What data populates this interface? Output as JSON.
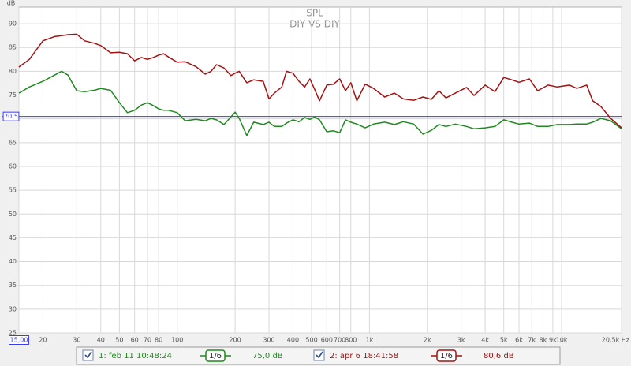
{
  "chart_data": {
    "type": "line",
    "title": "SPL",
    "subtitle": "DIY VS DIY",
    "y_label": "dB",
    "xscale": "log",
    "grid": true,
    "xlim": [
      15,
      20500
    ],
    "ylim": [
      25,
      93.5
    ],
    "xticks": [
      {
        "value": 15,
        "label": "15,00"
      },
      20,
      30,
      40,
      50,
      60,
      70,
      80,
      100,
      200,
      300,
      400,
      500,
      600,
      700,
      800,
      {
        "value": 1000,
        "label": "1k"
      },
      {
        "value": 2000,
        "label": "2k"
      },
      {
        "value": 3000,
        "label": "3k"
      },
      {
        "value": 4000,
        "label": "4k"
      },
      {
        "value": 5000,
        "label": "5k"
      },
      {
        "value": 6000,
        "label": "6k"
      },
      {
        "value": 7000,
        "label": "7k"
      },
      {
        "value": 8000,
        "label": "8k"
      },
      {
        "value": 9000,
        "label": "9k"
      },
      {
        "value": 10000,
        "label": "10k"
      },
      {
        "value": 20500,
        "label": "20,5k Hz"
      }
    ],
    "yticks": [
      25,
      30,
      35,
      40,
      45,
      50,
      55,
      60,
      65,
      70,
      75,
      80,
      85,
      90
    ],
    "reference_line": {
      "value": 70.5,
      "label": "70,5",
      "color": "#3a3aff"
    },
    "x": [
      15,
      17,
      20,
      23,
      25,
      27,
      30,
      33,
      37,
      40,
      45,
      50,
      55,
      60,
      65,
      70,
      75,
      80,
      85,
      90,
      100,
      110,
      125,
      140,
      150,
      160,
      175,
      190,
      200,
      210,
      230,
      250,
      280,
      300,
      320,
      350,
      370,
      400,
      430,
      460,
      490,
      520,
      550,
      600,
      650,
      700,
      750,
      800,
      860,
      950,
      1050,
      1200,
      1350,
      1500,
      1700,
      1900,
      2100,
      2300,
      2500,
      2800,
      3200,
      3500,
      4000,
      4500,
      5000,
      5500,
      6000,
      6800,
      7500,
      8500,
      9500,
      11000,
      12000,
      13500,
      14500,
      16000,
      18000,
      20500
    ],
    "series": [
      {
        "name": "1: feb 11 10:48:24",
        "smoothing": "1/6",
        "level": "75,0 dB",
        "color": "#1f8a1f",
        "values": [
          75.4,
          76.7,
          77.9,
          79.2,
          80.0,
          79.2,
          75.9,
          75.7,
          76.0,
          76.4,
          76.0,
          73.4,
          71.3,
          71.8,
          72.9,
          73.4,
          72.8,
          72.1,
          71.8,
          71.8,
          71.3,
          69.6,
          69.9,
          69.6,
          70.1,
          69.8,
          68.8,
          70.4,
          71.4,
          70.1,
          66.5,
          69.3,
          68.8,
          69.3,
          68.4,
          68.4,
          69.1,
          69.8,
          69.4,
          70.3,
          69.9,
          70.4,
          69.8,
          67.3,
          67.5,
          67.1,
          69.8,
          69.3,
          68.9,
          68.1,
          68.9,
          69.3,
          68.8,
          69.4,
          68.9,
          66.8,
          67.6,
          68.8,
          68.4,
          68.9,
          68.4,
          67.9,
          68.1,
          68.4,
          69.8,
          69.3,
          68.9,
          69.1,
          68.4,
          68.4,
          68.8,
          68.8,
          68.9,
          68.9,
          69.3,
          70.1,
          69.6,
          67.9
        ]
      },
      {
        "name": "2: apr 6 18:41:58",
        "smoothing": "1/6",
        "level": "80,6 dB",
        "color": "#a31212",
        "values": [
          80.9,
          82.5,
          86.4,
          87.3,
          87.5,
          87.7,
          87.8,
          86.4,
          85.9,
          85.4,
          83.9,
          84.0,
          83.7,
          82.2,
          82.9,
          82.5,
          82.9,
          83.4,
          83.7,
          83.0,
          81.9,
          82.0,
          81.0,
          79.4,
          80.0,
          81.4,
          80.7,
          79.1,
          79.6,
          80.0,
          77.6,
          78.2,
          77.9,
          74.2,
          75.4,
          76.7,
          80.0,
          79.6,
          77.9,
          76.7,
          78.4,
          76.1,
          73.8,
          77.1,
          77.3,
          78.4,
          75.9,
          77.6,
          73.8,
          77.3,
          76.4,
          74.6,
          75.4,
          74.2,
          73.9,
          74.6,
          74.1,
          75.9,
          74.4,
          75.4,
          76.6,
          74.9,
          77.1,
          75.7,
          78.7,
          78.2,
          77.7,
          78.4,
          75.9,
          77.1,
          76.7,
          77.1,
          76.4,
          77.1,
          73.8,
          72.6,
          70.1,
          68.1
        ]
      }
    ]
  }
}
